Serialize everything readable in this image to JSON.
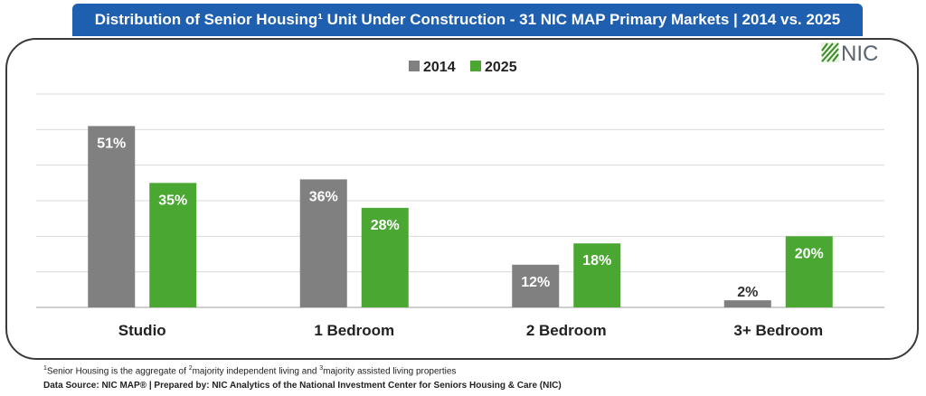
{
  "title": "Distribution of Senior Housing¹ Unit Under Construction - 31 NIC MAP Primary Markets | 2014 vs. 2025",
  "logo_text": "NIC",
  "footnote": {
    "mark_1": "1",
    "text_1": "Senior Housing is the aggregate of ",
    "mark_2": "2",
    "text_2": "majority independent living and ",
    "mark_3": "3",
    "text_3": "majority assisted living properties"
  },
  "source": "Data Source: NIC MAP® | Prepared by: NIC Analytics of the National Investment Center for Seniors Housing & Care (NIC)",
  "colors": {
    "title_bg": "#1f5fb0",
    "s2014": "#808080",
    "s2025": "#4aa832"
  },
  "chart_data": {
    "type": "bar",
    "categories": [
      "Studio",
      "1 Bedroom",
      "2 Bedroom",
      "3+ Bedroom"
    ],
    "series": [
      {
        "name": "2014",
        "values": [
          51,
          36,
          12,
          2
        ],
        "labels": [
          "51%",
          "36%",
          "12%",
          "2%"
        ],
        "color": "#808080"
      },
      {
        "name": "2025",
        "values": [
          35,
          28,
          18,
          20
        ],
        "labels": [
          "35%",
          "28%",
          "18%",
          "20%"
        ],
        "color": "#4aa832"
      }
    ],
    "ylim": [
      0,
      60
    ],
    "grid": true,
    "legend": "top-center",
    "title": "",
    "xlabel": "",
    "ylabel": ""
  }
}
